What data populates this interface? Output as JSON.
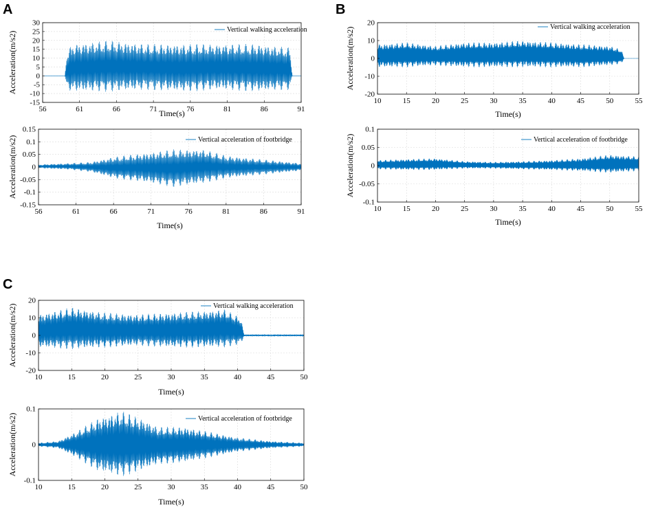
{
  "panel_labels": [
    "A",
    "B",
    "C"
  ],
  "chart_data": [
    {
      "id": "A-top",
      "panel": "A",
      "type": "line",
      "title": "",
      "xlabel": "Time(s)",
      "ylabel": "Acceleration(m/s2)",
      "xlim": [
        56,
        91
      ],
      "ylim": [
        -15,
        30
      ],
      "xticks": [
        56,
        61,
        66,
        71,
        76,
        81,
        86,
        91
      ],
      "yticks": [
        -15,
        -10,
        -5,
        0,
        5,
        10,
        15,
        20,
        25,
        30
      ],
      "grid": true,
      "legend_position": "top-right",
      "series": [
        {
          "name": "Vertical walking acceleration",
          "values": [
            [
              56,
              0
            ],
            [
              59,
              0
            ],
            [
              59.3,
              14
            ],
            [
              60,
              18
            ],
            [
              65,
              20
            ],
            [
              70,
              18
            ],
            [
              75,
              18
            ],
            [
              80,
              18
            ],
            [
              85,
              18
            ],
            [
              89.5,
              16
            ],
            [
              89.8,
              0
            ],
            [
              91,
              0
            ]
          ],
          "lower_envelope": [
            [
              56,
              0
            ],
            [
              59,
              0
            ],
            [
              59.3,
              -8
            ],
            [
              60,
              -9
            ],
            [
              65,
              -9
            ],
            [
              70,
              -8
            ],
            [
              75,
              -9
            ],
            [
              80,
              -8
            ],
            [
              85,
              -9
            ],
            [
              89.5,
              -8
            ],
            [
              89.8,
              0
            ],
            [
              91,
              0
            ]
          ],
          "step_frequency_hz": 2.0
        }
      ]
    },
    {
      "id": "A-bottom",
      "panel": "A",
      "type": "line",
      "title": "",
      "xlabel": "Time(s)",
      "ylabel": "Acceleration(m/s2)",
      "xlim": [
        56,
        91
      ],
      "ylim": [
        -0.15,
        0.15
      ],
      "xticks": [
        56,
        61,
        66,
        71,
        76,
        81,
        86,
        91
      ],
      "yticks": [
        -0.15,
        -0.1,
        -0.05,
        0,
        0.05,
        0.1,
        0.15
      ],
      "grid": true,
      "legend_position": "top-right",
      "series": [
        {
          "name": "Vertical acceleration of footbridge",
          "values": [
            [
              56,
              0.01
            ],
            [
              60,
              0.015
            ],
            [
              63,
              0.02
            ],
            [
              66,
              0.04
            ],
            [
              70,
              0.055
            ],
            [
              74,
              0.07
            ],
            [
              78,
              0.07
            ],
            [
              81,
              0.045
            ],
            [
              86,
              0.03
            ],
            [
              91,
              0.015
            ]
          ],
          "lower_envelope": [
            [
              56,
              -0.005
            ],
            [
              60,
              -0.01
            ],
            [
              63,
              -0.02
            ],
            [
              66,
              -0.045
            ],
            [
              70,
              -0.06
            ],
            [
              74,
              -0.08
            ],
            [
              78,
              -0.065
            ],
            [
              81,
              -0.045
            ],
            [
              86,
              -0.03
            ],
            [
              91,
              -0.015
            ]
          ],
          "step_frequency_hz": 2.0
        }
      ]
    },
    {
      "id": "B-top",
      "panel": "B",
      "type": "line",
      "title": "",
      "xlabel": "Time(s)",
      "ylabel": "Acceleration(m/s2)",
      "xlim": [
        10,
        55
      ],
      "ylim": [
        -20,
        20
      ],
      "xticks": [
        10,
        15,
        20,
        25,
        30,
        35,
        40,
        45,
        50,
        55
      ],
      "yticks": [
        -20,
        -10,
        0,
        10,
        20
      ],
      "grid": true,
      "legend_position": "top-right",
      "series": [
        {
          "name": "Vertical walking acceleration",
          "values": [
            [
              10,
              8
            ],
            [
              15,
              9
            ],
            [
              20,
              7
            ],
            [
              25,
              9
            ],
            [
              30,
              9
            ],
            [
              35,
              10
            ],
            [
              40,
              9
            ],
            [
              45,
              8
            ],
            [
              50,
              7
            ],
            [
              52,
              5
            ],
            [
              52.5,
              0
            ],
            [
              55,
              0
            ]
          ],
          "lower_envelope": [
            [
              10,
              -5
            ],
            [
              15,
              -5
            ],
            [
              20,
              -4
            ],
            [
              25,
              -5
            ],
            [
              30,
              -5
            ],
            [
              35,
              -5
            ],
            [
              40,
              -5
            ],
            [
              45,
              -5
            ],
            [
              50,
              -4
            ],
            [
              52,
              -3
            ],
            [
              52.5,
              0
            ],
            [
              55,
              0
            ]
          ],
          "step_frequency_hz": 2.0
        }
      ]
    },
    {
      "id": "B-bottom",
      "panel": "B",
      "type": "line",
      "title": "",
      "xlabel": "Time(s)",
      "ylabel": "Acceleration(m/s2)",
      "xlim": [
        10,
        55
      ],
      "ylim": [
        -0.1,
        0.1
      ],
      "xticks": [
        10,
        15,
        20,
        25,
        30,
        35,
        40,
        45,
        50,
        55
      ],
      "yticks": [
        -0.1,
        -0.05,
        0,
        0.05,
        0.1
      ],
      "grid": true,
      "legend_position": "top-right",
      "series": [
        {
          "name": "Vertical acceleration of footbridge",
          "values": [
            [
              10,
              0.015
            ],
            [
              15,
              0.018
            ],
            [
              20,
              0.02
            ],
            [
              25,
              0.012
            ],
            [
              30,
              0.01
            ],
            [
              35,
              0.012
            ],
            [
              40,
              0.015
            ],
            [
              45,
              0.02
            ],
            [
              50,
              0.03
            ],
            [
              55,
              0.025
            ]
          ],
          "lower_envelope": [
            [
              10,
              -0.01
            ],
            [
              15,
              -0.012
            ],
            [
              20,
              -0.012
            ],
            [
              25,
              -0.008
            ],
            [
              30,
              -0.008
            ],
            [
              35,
              -0.01
            ],
            [
              40,
              -0.012
            ],
            [
              45,
              -0.015
            ],
            [
              50,
              -0.02
            ],
            [
              55,
              -0.015
            ]
          ],
          "step_frequency_hz": 2.0
        }
      ]
    },
    {
      "id": "C-top",
      "panel": "C",
      "type": "line",
      "title": "",
      "xlabel": "Time(s)",
      "ylabel": "Acceleration(m/s2)",
      "xlim": [
        10,
        50
      ],
      "ylim": [
        -20,
        20
      ],
      "xticks": [
        10,
        15,
        20,
        25,
        30,
        35,
        40,
        45,
        50
      ],
      "yticks": [
        -20,
        -10,
        0,
        10,
        20
      ],
      "grid": true,
      "legend_position": "top-right",
      "series": [
        {
          "name": "Vertical walking acceleration",
          "values": [
            [
              10,
              12
            ],
            [
              15,
              16
            ],
            [
              20,
              13
            ],
            [
              25,
              12
            ],
            [
              30,
              13
            ],
            [
              35,
              14
            ],
            [
              38,
              15
            ],
            [
              40.5,
              10
            ],
            [
              41,
              0.5
            ],
            [
              50,
              0.5
            ]
          ],
          "lower_envelope": [
            [
              10,
              -7
            ],
            [
              15,
              -8
            ],
            [
              20,
              -7
            ],
            [
              25,
              -6
            ],
            [
              30,
              -7
            ],
            [
              35,
              -7
            ],
            [
              38,
              -7
            ],
            [
              40.5,
              -5
            ],
            [
              41,
              -0.5
            ],
            [
              50,
              -0.5
            ]
          ],
          "step_frequency_hz": 2.0
        }
      ]
    },
    {
      "id": "C-bottom",
      "panel": "C",
      "type": "line",
      "title": "",
      "xlabel": "Time(s)",
      "ylabel": "Acceleration(m/s2)",
      "xlim": [
        10,
        50
      ],
      "ylim": [
        -0.1,
        0.1
      ],
      "xticks": [
        10,
        15,
        20,
        25,
        30,
        35,
        40,
        45,
        50
      ],
      "yticks": [
        -0.1,
        0,
        0.1
      ],
      "grid": true,
      "legend_position": "top-right",
      "series": [
        {
          "name": "Vertical acceleration of footbridge",
          "values": [
            [
              10,
              0.005
            ],
            [
              13,
              0.01
            ],
            [
              16,
              0.04
            ],
            [
              19,
              0.075
            ],
            [
              22.5,
              0.095
            ],
            [
              26,
              0.07
            ],
            [
              28,
              0.05
            ],
            [
              32,
              0.05
            ],
            [
              36,
              0.035
            ],
            [
              40,
              0.02
            ],
            [
              45,
              0.01
            ],
            [
              50,
              0.005
            ]
          ],
          "lower_envelope": [
            [
              10,
              -0.005
            ],
            [
              13,
              -0.01
            ],
            [
              16,
              -0.04
            ],
            [
              19,
              -0.075
            ],
            [
              22.5,
              -0.09
            ],
            [
              26,
              -0.07
            ],
            [
              28,
              -0.055
            ],
            [
              32,
              -0.05
            ],
            [
              36,
              -0.035
            ],
            [
              40,
              -0.02
            ],
            [
              45,
              -0.01
            ],
            [
              50,
              -0.005
            ]
          ],
          "step_frequency_hz": 2.0
        }
      ]
    }
  ]
}
